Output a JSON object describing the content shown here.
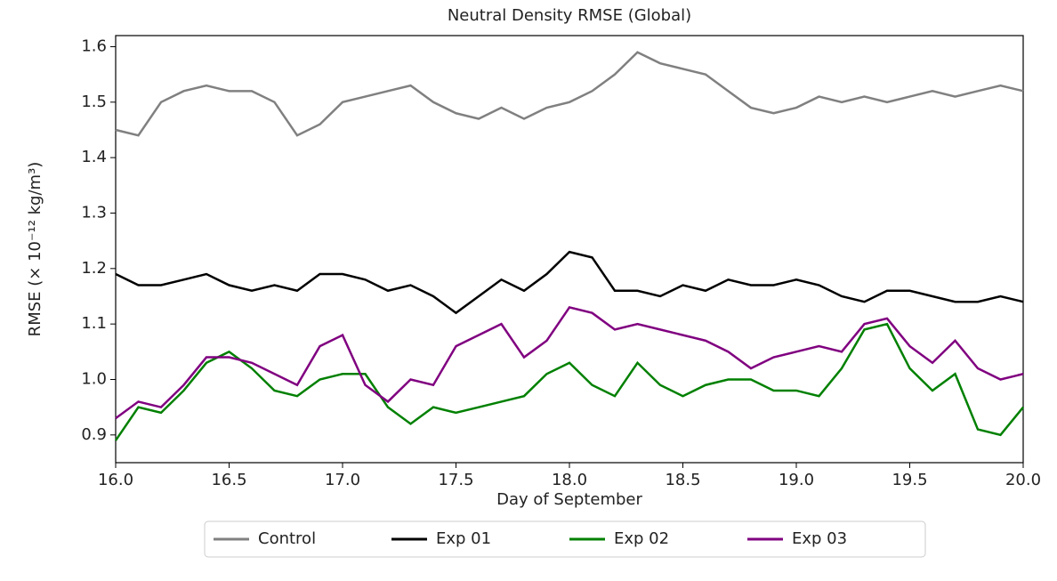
{
  "chart_data": {
    "type": "line",
    "title": "Neutral Density RMSE (Global)",
    "ylabel": "RMSE (× 10⁻¹² kg/m³)",
    "xlabel": "Day of September",
    "x": [
      16.0,
      16.1,
      16.2,
      16.3,
      16.4,
      16.5,
      16.6,
      16.7,
      16.8,
      16.9,
      17.0,
      17.1,
      17.2,
      17.3,
      17.4,
      17.5,
      17.6,
      17.7,
      17.8,
      17.9,
      18.0,
      18.1,
      18.2,
      18.3,
      18.4,
      18.5,
      18.6,
      18.7,
      18.8,
      18.9,
      19.0,
      19.1,
      19.2,
      19.3,
      19.4,
      19.5,
      19.6,
      19.7,
      19.8,
      19.9,
      20.0
    ],
    "series": [
      {
        "name": "Control",
        "color": "#808080",
        "values": [
          1.45,
          1.44,
          1.5,
          1.52,
          1.53,
          1.52,
          1.52,
          1.5,
          1.44,
          1.46,
          1.5,
          1.51,
          1.52,
          1.53,
          1.5,
          1.48,
          1.47,
          1.49,
          1.47,
          1.49,
          1.5,
          1.52,
          1.55,
          1.59,
          1.57,
          1.56,
          1.55,
          1.52,
          1.49,
          1.48,
          1.49,
          1.51,
          1.5,
          1.51,
          1.5,
          1.51,
          1.52,
          1.51,
          1.52,
          1.53,
          1.52
        ]
      },
      {
        "name": "Exp 01",
        "color": "#000000",
        "values": [
          1.19,
          1.17,
          1.17,
          1.18,
          1.19,
          1.17,
          1.16,
          1.17,
          1.16,
          1.19,
          1.19,
          1.18,
          1.16,
          1.17,
          1.15,
          1.12,
          1.15,
          1.18,
          1.16,
          1.19,
          1.23,
          1.22,
          1.16,
          1.16,
          1.15,
          1.17,
          1.16,
          1.18,
          1.17,
          1.17,
          1.18,
          1.17,
          1.15,
          1.14,
          1.16,
          1.16,
          1.15,
          1.14,
          1.14,
          1.15,
          1.14
        ]
      },
      {
        "name": "Exp 02",
        "color": "#008000",
        "values": [
          0.89,
          0.95,
          0.94,
          0.98,
          1.03,
          1.05,
          1.02,
          0.98,
          0.97,
          1.0,
          1.01,
          1.01,
          0.95,
          0.92,
          0.95,
          0.94,
          0.95,
          0.96,
          0.97,
          1.01,
          1.03,
          0.99,
          0.97,
          1.03,
          0.99,
          0.97,
          0.99,
          1.0,
          1.0,
          0.98,
          0.98,
          0.97,
          1.02,
          1.09,
          1.1,
          1.02,
          0.98,
          1.01,
          0.91,
          0.9,
          0.95
        ]
      },
      {
        "name": "Exp 03",
        "color": "#800080",
        "values": [
          0.93,
          0.96,
          0.95,
          0.99,
          1.04,
          1.04,
          1.03,
          1.01,
          0.99,
          1.06,
          1.08,
          0.99,
          0.96,
          1.0,
          0.99,
          1.06,
          1.08,
          1.1,
          1.04,
          1.07,
          1.13,
          1.12,
          1.09,
          1.1,
          1.09,
          1.08,
          1.07,
          1.05,
          1.02,
          1.04,
          1.05,
          1.06,
          1.05,
          1.1,
          1.11,
          1.06,
          1.03,
          1.07,
          1.02,
          1.0,
          1.01
        ]
      }
    ],
    "xlim": [
      16.0,
      20.0
    ],
    "xticks": [
      {
        "value": 16,
        "label": "16.0"
      },
      16.5,
      {
        "value": 17,
        "label": "17.0"
      },
      17.5,
      {
        "value": 18,
        "label": "18.0"
      },
      18.5,
      {
        "value": 19,
        "label": "19.0"
      },
      19.5,
      {
        "value": 20,
        "label": "20.0"
      }
    ],
    "ylim": [
      0.85,
      1.62
    ],
    "yticks": [
      0.9,
      {
        "value": 1,
        "label": "1.0"
      },
      1.1,
      1.2,
      1.3,
      1.4,
      1.5,
      1.6
    ],
    "legend": "bottom"
  }
}
